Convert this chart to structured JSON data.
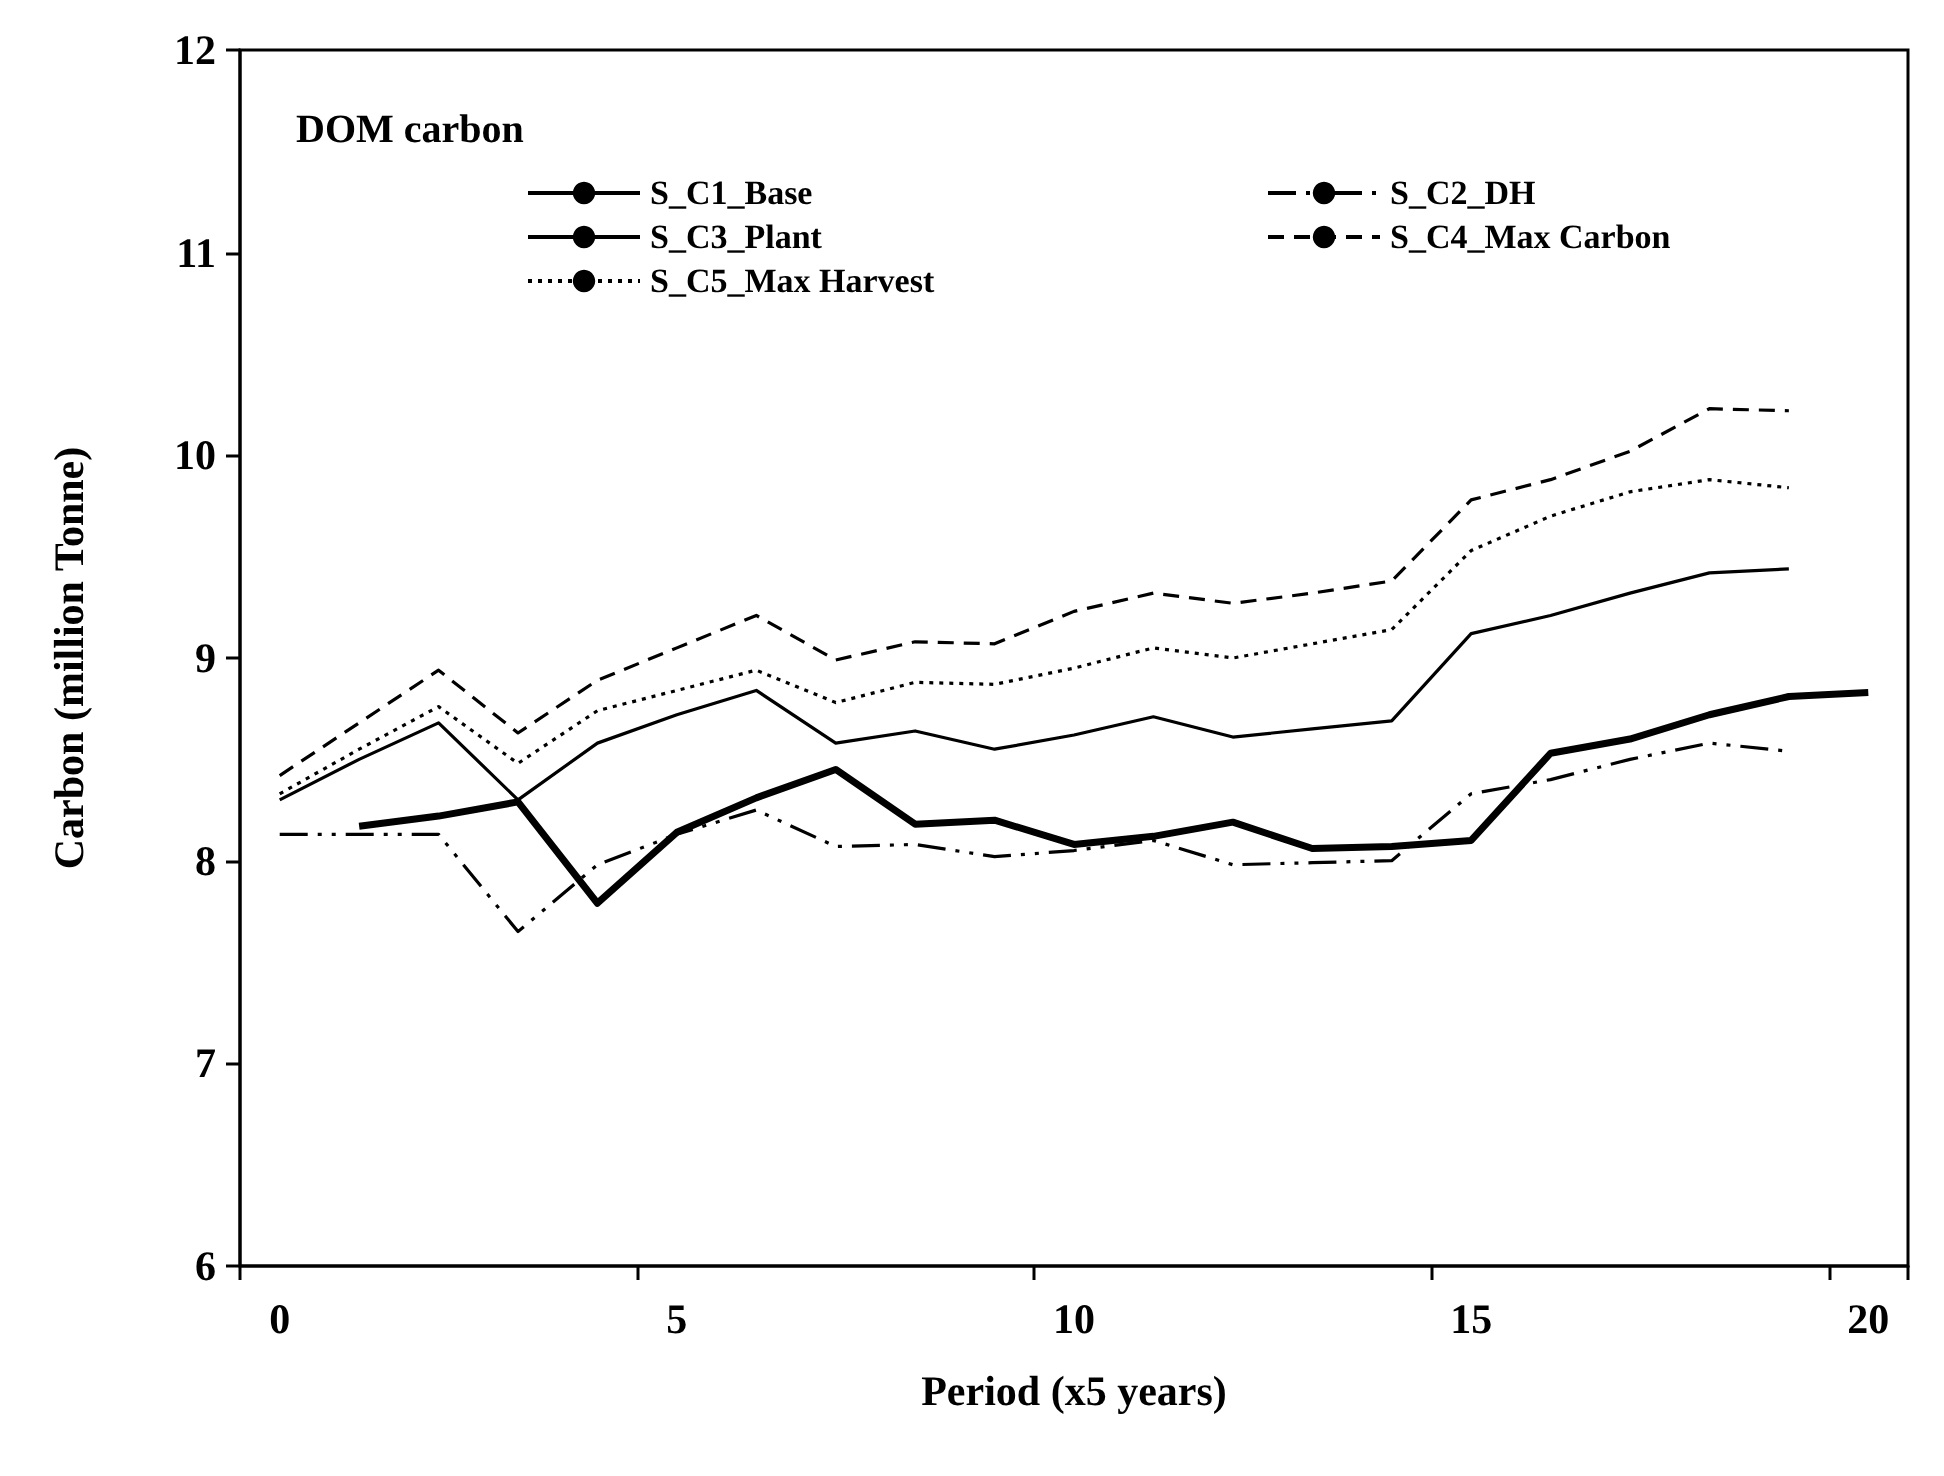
{
  "chart_data": {
    "type": "line",
    "title": "DOM carbon",
    "xlabel": "Period (x5 years)",
    "ylabel": "Carbon (million Tonne)",
    "categories": [
      "0",
      null,
      null,
      null,
      null,
      "5",
      null,
      null,
      null,
      null,
      "10",
      null,
      null,
      null,
      null,
      "15",
      null,
      null,
      null,
      null,
      "20"
    ],
    "ylim": [
      6,
      12
    ],
    "yticks": [
      6,
      7,
      8,
      9,
      10,
      11,
      12
    ],
    "grid": false,
    "legend": "top",
    "marker": "none",
    "series": [
      {
        "name": "S_C1_Base",
        "color": "#000000",
        "line_style": "solid",
        "values": [
          null,
          8.17,
          8.22,
          8.29,
          7.79,
          8.14,
          8.31,
          8.45,
          8.18,
          8.2,
          8.08,
          8.12,
          8.19,
          8.06,
          8.07,
          8.1,
          8.53,
          8.6,
          8.72,
          8.81,
          8.83
        ]
      },
      {
        "name": "S_C2_DH",
        "color": "#000000",
        "line_style": "dashdot",
        "values": [
          8.13,
          8.13,
          8.13,
          7.65,
          7.98,
          8.13,
          8.25,
          8.07,
          8.08,
          8.02,
          8.05,
          8.1,
          7.98,
          7.99,
          8.0,
          8.33,
          8.4,
          8.5,
          8.58,
          8.54,
          null
        ]
      },
      {
        "name": "S_C3_Plant",
        "color": "#000000",
        "line_style": "solid",
        "values": [
          8.3,
          8.5,
          8.68,
          8.3,
          8.58,
          8.72,
          8.84,
          8.58,
          8.64,
          8.55,
          8.62,
          8.71,
          8.61,
          8.65,
          8.69,
          9.12,
          9.21,
          9.32,
          9.42,
          9.44,
          null
        ]
      },
      {
        "name": "S_C4_Max Carbon",
        "color": "#000000",
        "line_style": "dashed",
        "values": [
          8.42,
          8.68,
          8.94,
          8.63,
          8.89,
          9.05,
          9.21,
          8.99,
          9.08,
          9.07,
          9.23,
          9.32,
          9.27,
          9.32,
          9.38,
          9.78,
          9.88,
          10.02,
          10.23,
          10.22,
          null
        ]
      },
      {
        "name": "S_C5_Max Harvest",
        "color": "#000000",
        "line_style": "dotted",
        "values": [
          8.33,
          8.55,
          8.76,
          8.48,
          8.74,
          8.84,
          8.94,
          8.78,
          8.88,
          8.87,
          8.95,
          9.05,
          9.0,
          9.07,
          9.14,
          9.53,
          9.7,
          9.82,
          9.88,
          9.84,
          null
        ]
      }
    ]
  }
}
